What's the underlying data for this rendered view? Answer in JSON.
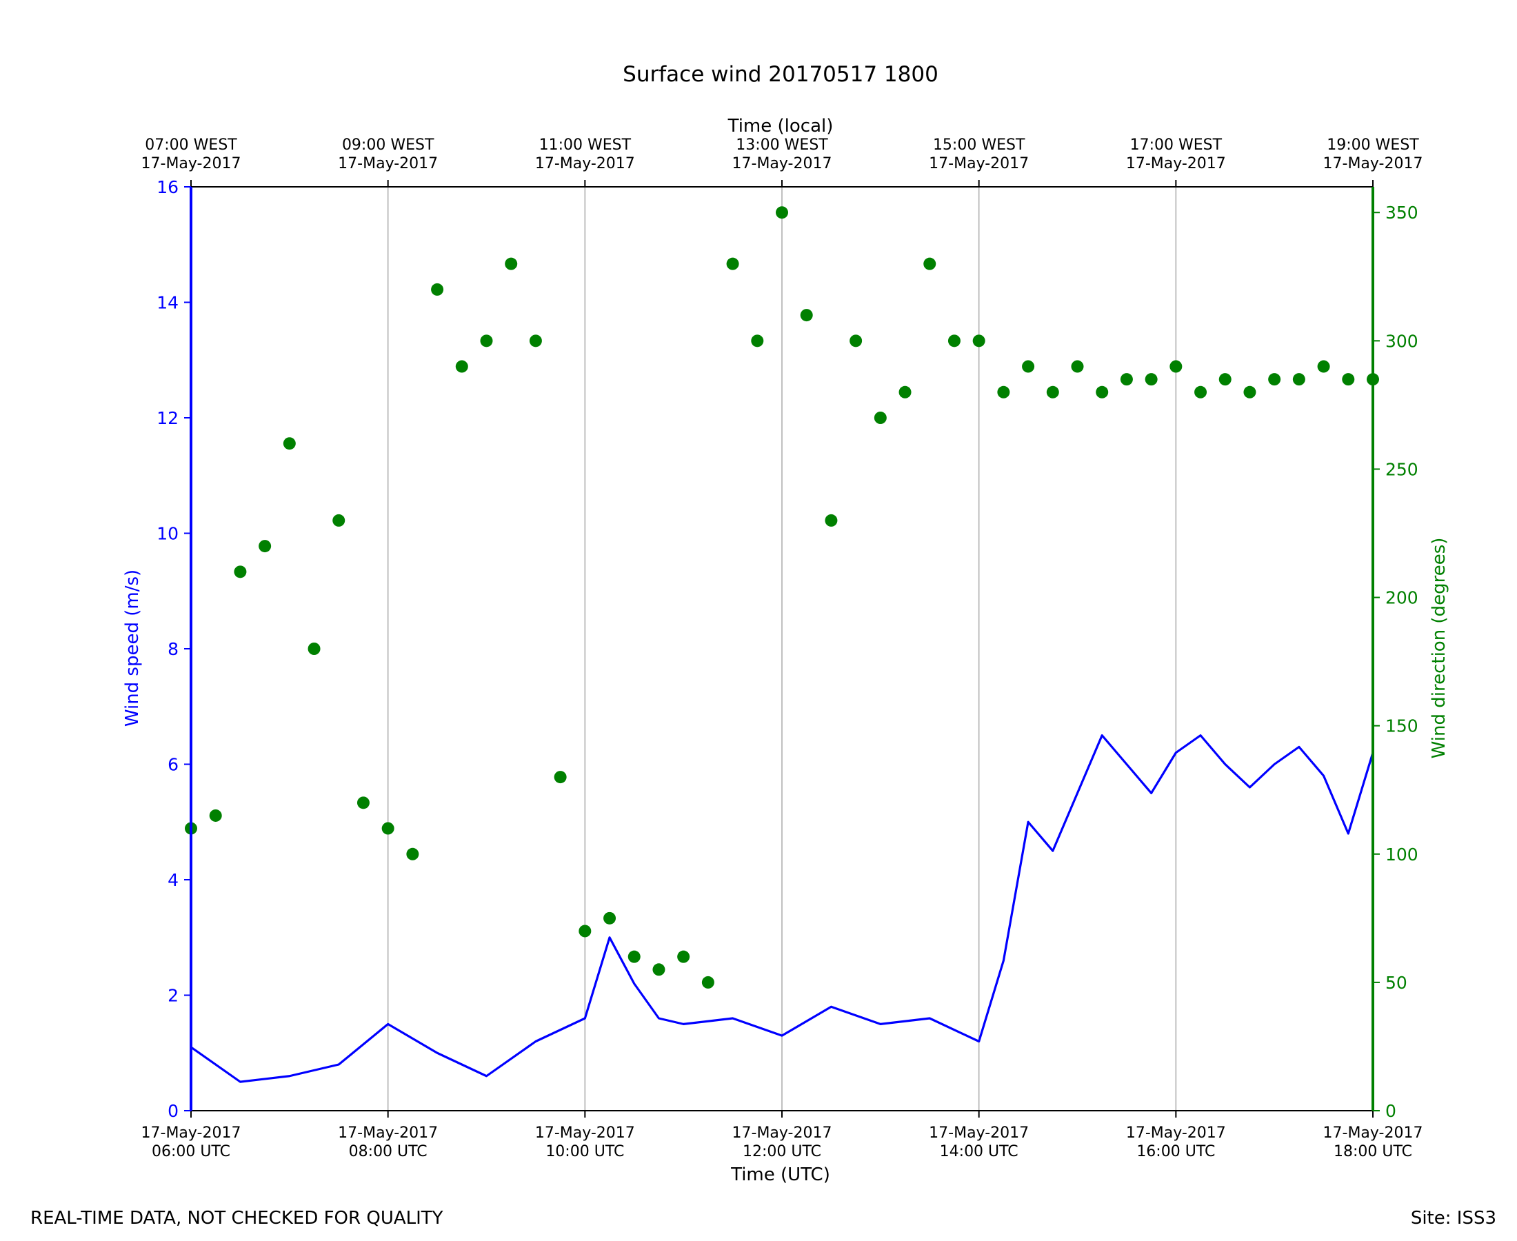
{
  "chart_data": {
    "type": "line+scatter",
    "title": "Surface wind 20170517 1800",
    "xlabel_bottom": "Time (UTC)",
    "xlabel_top": "Time (local)",
    "ylabel_left": "Wind speed (m/s)",
    "ylabel_right": "Wind direction (degrees)",
    "x_range_hours_utc": [
      6,
      18
    ],
    "ylim_left": [
      0,
      16
    ],
    "ylim_right": [
      0,
      360
    ],
    "yticks_left": [
      "0",
      "2",
      "4",
      "6",
      "8",
      "10",
      "12",
      "14",
      "16"
    ],
    "yticks_right": [
      "0",
      "50",
      "100",
      "150",
      "200",
      "250",
      "300",
      "350"
    ],
    "xticks_bottom": [
      {
        "date": "17-May-2017",
        "time": "06:00 UTC"
      },
      {
        "date": "17-May-2017",
        "time": "08:00 UTC"
      },
      {
        "date": "17-May-2017",
        "time": "10:00 UTC"
      },
      {
        "date": "17-May-2017",
        "time": "12:00 UTC"
      },
      {
        "date": "17-May-2017",
        "time": "14:00 UTC"
      },
      {
        "date": "17-May-2017",
        "time": "16:00 UTC"
      },
      {
        "date": "17-May-2017",
        "time": "18:00 UTC"
      }
    ],
    "xticks_top": [
      {
        "time": "07:00 WEST",
        "date": "17-May-2017"
      },
      {
        "time": "09:00 WEST",
        "date": "17-May-2017"
      },
      {
        "time": "11:00 WEST",
        "date": "17-May-2017"
      },
      {
        "time": "13:00 WEST",
        "date": "17-May-2017"
      },
      {
        "time": "15:00 WEST",
        "date": "17-May-2017"
      },
      {
        "time": "17:00 WEST",
        "date": "17-May-2017"
      },
      {
        "time": "19:00 WEST",
        "date": "17-May-2017"
      }
    ],
    "grid": "vertical lines at major x ticks",
    "series": [
      {
        "kind": "line",
        "axis": "left",
        "color": "#0000ff",
        "x_hours_utc": [
          6.0,
          6.5,
          7.0,
          7.5,
          8.0,
          8.5,
          9.0,
          9.5,
          10.0,
          10.25,
          10.5,
          10.75,
          11.0,
          11.5,
          12.0,
          12.5,
          13.0,
          13.5,
          14.0,
          14.25,
          14.5,
          14.75,
          15.0,
          15.25,
          15.5,
          15.75,
          16.0,
          16.25,
          16.5,
          16.75,
          17.0,
          17.25,
          17.5,
          17.75,
          18.0
        ],
        "values": [
          1.1,
          0.5,
          0.6,
          0.8,
          1.5,
          1.0,
          0.6,
          1.2,
          1.6,
          3.0,
          2.2,
          1.6,
          1.5,
          1.6,
          1.3,
          1.8,
          1.5,
          1.6,
          1.2,
          2.6,
          5.0,
          4.5,
          5.5,
          6.5,
          6.0,
          5.5,
          6.2,
          6.5,
          6.0,
          5.6,
          6.0,
          6.3,
          5.8,
          4.8,
          6.2
        ]
      },
      {
        "kind": "scatter",
        "axis": "right",
        "color": "#008000",
        "x_hours_utc": [
          6.0,
          6.25,
          6.5,
          6.75,
          7.0,
          7.25,
          7.5,
          7.75,
          8.0,
          8.25,
          8.5,
          8.75,
          9.0,
          9.25,
          9.5,
          9.75,
          10.0,
          10.25,
          10.5,
          10.75,
          11.0,
          11.25,
          11.5,
          11.75,
          12.0,
          12.25,
          12.5,
          12.75,
          13.0,
          13.25,
          13.5,
          13.75,
          14.0,
          14.25,
          14.5,
          14.75,
          15.0,
          15.25,
          15.5,
          15.75,
          16.0,
          16.25,
          16.5,
          16.75,
          17.0,
          17.25,
          17.5,
          17.75,
          18.0
        ],
        "values": [
          110,
          115,
          210,
          220,
          260,
          180,
          230,
          120,
          110,
          100,
          320,
          290,
          300,
          330,
          300,
          130,
          70,
          75,
          60,
          55,
          60,
          50,
          330,
          300,
          350,
          310,
          230,
          300,
          270,
          280,
          330,
          300,
          300,
          280,
          290,
          280,
          290,
          280,
          285,
          285,
          290,
          280,
          285,
          280,
          285,
          285,
          290,
          285,
          285
        ]
      }
    ]
  },
  "footer": {
    "left": "REAL-TIME DATA, NOT CHECKED FOR QUALITY",
    "right": "Site: ISS3"
  }
}
